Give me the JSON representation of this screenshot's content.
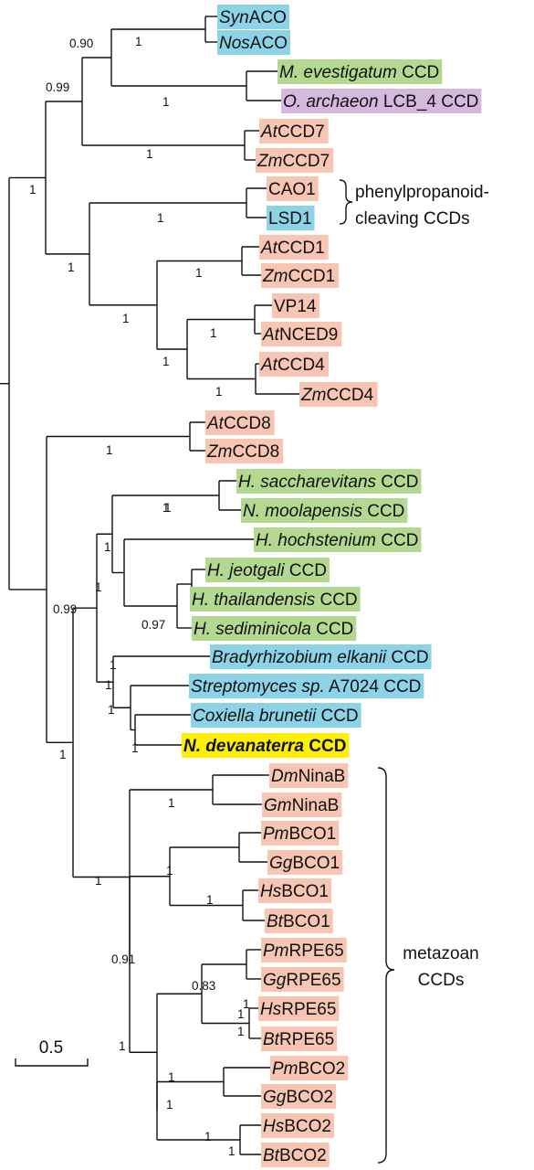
{
  "colors": {
    "plant": "#f7c5b2",
    "archaea": "#b2d98f",
    "bacteria": "#8cd3e8",
    "purple": "#d5b8de",
    "highlight": "#ffef00"
  },
  "taxa": [
    {
      "parts": [
        {
          "t": "Syn",
          "i": true
        },
        {
          "t": "ACO",
          "i": false
        }
      ],
      "c": "bacteria"
    },
    {
      "parts": [
        {
          "t": "Nos",
          "i": true
        },
        {
          "t": "ACO",
          "i": false
        }
      ],
      "c": "bacteria"
    },
    {
      "parts": [
        {
          "t": "M. evestigatum",
          "i": true
        },
        {
          "t": " CCD",
          "i": false
        }
      ],
      "c": "archaea"
    },
    {
      "parts": [
        {
          "t": "O. archaeon",
          "i": true
        },
        {
          "t": " LCB_4 CCD",
          "i": false
        }
      ],
      "c": "purple"
    },
    {
      "parts": [
        {
          "t": "At",
          "i": true
        },
        {
          "t": "CCD7",
          "i": false
        }
      ],
      "c": "plant"
    },
    {
      "parts": [
        {
          "t": "Zm",
          "i": true
        },
        {
          "t": "CCD7",
          "i": false
        }
      ],
      "c": "plant"
    },
    {
      "parts": [
        {
          "t": "CAO1",
          "i": false
        }
      ],
      "c": "plant"
    },
    {
      "parts": [
        {
          "t": "LSD1",
          "i": false
        }
      ],
      "c": "bacteria"
    },
    {
      "parts": [
        {
          "t": "At",
          "i": true
        },
        {
          "t": "CCD1",
          "i": false
        }
      ],
      "c": "plant"
    },
    {
      "parts": [
        {
          "t": "Zm",
          "i": true
        },
        {
          "t": "CCD1",
          "i": false
        }
      ],
      "c": "plant"
    },
    {
      "parts": [
        {
          "t": "VP14",
          "i": false
        }
      ],
      "c": "plant"
    },
    {
      "parts": [
        {
          "t": "At",
          "i": true
        },
        {
          "t": "NCED9",
          "i": false
        }
      ],
      "c": "plant"
    },
    {
      "parts": [
        {
          "t": "At",
          "i": true
        },
        {
          "t": "CCD4",
          "i": false
        }
      ],
      "c": "plant"
    },
    {
      "parts": [
        {
          "t": "Zm",
          "i": true
        },
        {
          "t": "CCD4",
          "i": false
        }
      ],
      "c": "plant"
    },
    {
      "parts": [
        {
          "t": "At",
          "i": true
        },
        {
          "t": "CCD8",
          "i": false
        }
      ],
      "c": "plant"
    },
    {
      "parts": [
        {
          "t": "Zm",
          "i": true
        },
        {
          "t": "CCD8",
          "i": false
        }
      ],
      "c": "plant"
    },
    {
      "parts": [
        {
          "t": "H. saccharevitans",
          "i": true
        },
        {
          "t": " CCD",
          "i": false
        }
      ],
      "c": "archaea"
    },
    {
      "parts": [
        {
          "t": "N. moolapensis",
          "i": true
        },
        {
          "t": " CCD",
          "i": false
        }
      ],
      "c": "archaea"
    },
    {
      "parts": [
        {
          "t": "H. hochstenium",
          "i": true
        },
        {
          "t": " CCD",
          "i": false
        }
      ],
      "c": "archaea"
    },
    {
      "parts": [
        {
          "t": "H. jeotgali",
          "i": true
        },
        {
          "t": " CCD",
          "i": false
        }
      ],
      "c": "archaea"
    },
    {
      "parts": [
        {
          "t": "H. thailandensis",
          "i": true
        },
        {
          "t": " CCD",
          "i": false
        }
      ],
      "c": "archaea"
    },
    {
      "parts": [
        {
          "t": "H. sediminicola",
          "i": true
        },
        {
          "t": " CCD",
          "i": false
        }
      ],
      "c": "archaea"
    },
    {
      "parts": [
        {
          "t": "Bradyrhizobium elkanii",
          "i": true
        },
        {
          "t": " CCD",
          "i": false
        }
      ],
      "c": "bacteria"
    },
    {
      "parts": [
        {
          "t": "Streptomyces sp.",
          "i": true
        },
        {
          "t": " A7024 CCD",
          "i": false
        }
      ],
      "c": "bacteria"
    },
    {
      "parts": [
        {
          "t": "Coxiella brunetii",
          "i": true
        },
        {
          "t": " CCD",
          "i": false
        }
      ],
      "c": "bacteria"
    },
    {
      "parts": [
        {
          "t": "N. devanaterra",
          "i": true
        },
        {
          "t": " CCD",
          "i": false
        }
      ],
      "c": "highlight",
      "bold": true
    },
    {
      "parts": [
        {
          "t": "Dm",
          "i": true
        },
        {
          "t": "NinaB",
          "i": false
        }
      ],
      "c": "plant"
    },
    {
      "parts": [
        {
          "t": "Gm",
          "i": true
        },
        {
          "t": "NinaB",
          "i": false
        }
      ],
      "c": "plant"
    },
    {
      "parts": [
        {
          "t": "Pm",
          "i": true
        },
        {
          "t": "BCO1",
          "i": false
        }
      ],
      "c": "plant"
    },
    {
      "parts": [
        {
          "t": "Gg",
          "i": true
        },
        {
          "t": "BCO1",
          "i": false
        }
      ],
      "c": "plant"
    },
    {
      "parts": [
        {
          "t": "Hs",
          "i": true
        },
        {
          "t": "BCO1",
          "i": false
        }
      ],
      "c": "plant"
    },
    {
      "parts": [
        {
          "t": "Bt",
          "i": true
        },
        {
          "t": "BCO1",
          "i": false
        }
      ],
      "c": "plant"
    },
    {
      "parts": [
        {
          "t": "Pm",
          "i": true
        },
        {
          "t": "RPE65",
          "i": false
        }
      ],
      "c": "plant"
    },
    {
      "parts": [
        {
          "t": "Gg",
          "i": true
        },
        {
          "t": "RPE65",
          "i": false
        }
      ],
      "c": "plant"
    },
    {
      "parts": [
        {
          "t": "Hs",
          "i": true
        },
        {
          "t": "RPE65",
          "i": false
        }
      ],
      "c": "plant"
    },
    {
      "parts": [
        {
          "t": "Bt",
          "i": true
        },
        {
          "t": "RPE65",
          "i": false
        }
      ],
      "c": "plant"
    },
    {
      "parts": [
        {
          "t": "Pm",
          "i": true
        },
        {
          "t": "BCO2",
          "i": false
        }
      ],
      "c": "plant"
    },
    {
      "parts": [
        {
          "t": "Gg",
          "i": true
        },
        {
          "t": "BCO2",
          "i": false
        }
      ],
      "c": "plant"
    },
    {
      "parts": [
        {
          "t": "Hs",
          "i": true
        },
        {
          "t": "BCO2",
          "i": false
        }
      ],
      "c": "plant"
    },
    {
      "parts": [
        {
          "t": "Bt",
          "i": true
        },
        {
          "t": "BCO2",
          "i": false
        }
      ],
      "c": "plant"
    }
  ],
  "supports": [
    "0.90",
    "1",
    "0.99",
    "1",
    "1",
    "1",
    "1",
    "1",
    "1",
    "1",
    "1",
    "1",
    "1",
    "1",
    "1",
    "0.99",
    "1",
    "1",
    "0.97",
    "1",
    "1",
    "1",
    "1",
    "1",
    "1",
    "1",
    "1",
    "0.91",
    "1",
    "1",
    "0.83",
    "1",
    "1",
    "1",
    "1",
    "1",
    "1",
    "1",
    "1"
  ],
  "annotations": {
    "phenyl_line1": "phenylpropanoid-",
    "phenyl_line2": "cleaving CCDs",
    "metazoan_line1": "metazoan",
    "metazoan_line2": "CCDs"
  },
  "scale_bar": {
    "label": "0.5"
  }
}
